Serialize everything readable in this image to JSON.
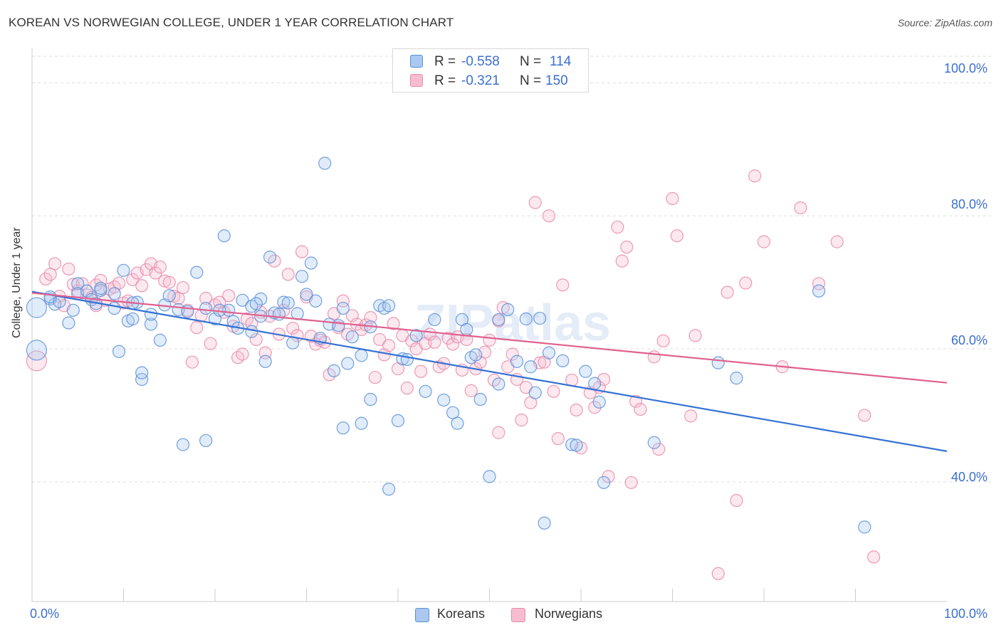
{
  "title": "KOREAN VS NORWEGIAN COLLEGE, UNDER 1 YEAR CORRELATION CHART",
  "source": "Source: ZipAtlas.com",
  "watermark": "ZIPatlas",
  "legend": {
    "rows": [
      {
        "r_label": "R =",
        "r_value": "-0.558",
        "n_label": "N =",
        "n_value": "114"
      },
      {
        "r_label": "R =",
        "r_value": "-0.321",
        "n_label": "N =",
        "n_value": "150"
      }
    ]
  },
  "bottom_legend": [
    "Koreans",
    "Norwegians"
  ],
  "colors": {
    "korean_fill": "#aac8f0",
    "korean_stroke": "#5b8fd6",
    "korean_line": "#3471d4",
    "norwegian_fill": "#f7bcd0",
    "norwegian_stroke": "#e88aaa",
    "norwegian_line": "#e0608e",
    "axis_text": "#3a6fd0",
    "grid": "#dddddd"
  },
  "chart_data": {
    "type": "scatter",
    "title": "KOREAN VS NORWEGIAN COLLEGE, UNDER 1 YEAR CORRELATION CHART",
    "xlabel": "",
    "ylabel": "College, Under 1 year",
    "xlim": [
      0,
      100
    ],
    "ylim": [
      22,
      104
    ],
    "x_tick_labels": [
      "0.0%",
      "100.0%"
    ],
    "y_tick_labels": [
      "40.0%",
      "60.0%",
      "80.0%",
      "100.0%"
    ],
    "y_ticks": [
      40,
      60,
      80,
      100
    ],
    "grid": true,
    "legend_position": "top-center",
    "series": [
      {
        "name": "Koreans",
        "R": -0.558,
        "N": 114,
        "trend": {
          "x": [
            0,
            100
          ],
          "y": [
            68.6,
            44.6
          ]
        },
        "points": [
          [
            0.5,
            66.2
          ],
          [
            0.5,
            59.8
          ],
          [
            2,
            67.5
          ],
          [
            2.5,
            66.7
          ],
          [
            4,
            63.9
          ],
          [
            4.5,
            65.8
          ],
          [
            5,
            69.8
          ],
          [
            5,
            68.3
          ],
          [
            6,
            68.7
          ],
          [
            6.5,
            67.4
          ],
          [
            7,
            66.8
          ],
          [
            7.5,
            68.8
          ],
          [
            9,
            66.1
          ],
          [
            9,
            68.3
          ],
          [
            9.5,
            59.6
          ],
          [
            10,
            71.8
          ],
          [
            10.5,
            64.2
          ],
          [
            11,
            64.5
          ],
          [
            11.5,
            67
          ],
          [
            12,
            55.4
          ],
          [
            12,
            56.4
          ],
          [
            13,
            63.7
          ],
          [
            13,
            65.2
          ],
          [
            14,
            61.3
          ],
          [
            14.5,
            66.6
          ],
          [
            15,
            68
          ],
          [
            16,
            65.9
          ],
          [
            16.5,
            45.6
          ],
          [
            17,
            65.6
          ],
          [
            18,
            71.5
          ],
          [
            19,
            66.1
          ],
          [
            19,
            46.2
          ],
          [
            20,
            64.5
          ],
          [
            21,
            77
          ],
          [
            21.5,
            65.8
          ],
          [
            22,
            64.1
          ],
          [
            22.5,
            63.1
          ],
          [
            23,
            67.3
          ],
          [
            24,
            66.4
          ],
          [
            24,
            62.6
          ],
          [
            25,
            67.5
          ],
          [
            25,
            64.9
          ],
          [
            25.5,
            58.1
          ],
          [
            26,
            73.8
          ],
          [
            26.5,
            65.4
          ],
          [
            27,
            65.2
          ],
          [
            27.5,
            67
          ],
          [
            28,
            66.9
          ],
          [
            28.5,
            60.9
          ],
          [
            29,
            65.3
          ],
          [
            29.5,
            70.9
          ],
          [
            30,
            68.2
          ],
          [
            30.5,
            72.9
          ],
          [
            31,
            67.2
          ],
          [
            31.5,
            61.6
          ],
          [
            32,
            87.9
          ],
          [
            32.5,
            63.7
          ],
          [
            33,
            56.7
          ],
          [
            33.5,
            63.5
          ],
          [
            34,
            48.1
          ],
          [
            34.5,
            57.8
          ],
          [
            35,
            61.8
          ],
          [
            36,
            48.8
          ],
          [
            36,
            59
          ],
          [
            37,
            52.4
          ],
          [
            37,
            63.3
          ],
          [
            38,
            66.5
          ],
          [
            38.5,
            66.1
          ],
          [
            39,
            38.9
          ],
          [
            39,
            66.5
          ],
          [
            40,
            49.2
          ],
          [
            40.5,
            58.5
          ],
          [
            42,
            62
          ],
          [
            43,
            53.6
          ],
          [
            44,
            64.4
          ],
          [
            45,
            52.3
          ],
          [
            46,
            50.4
          ],
          [
            46.5,
            48.8
          ],
          [
            47,
            64.4
          ],
          [
            47.5,
            62.9
          ],
          [
            48,
            58.7
          ],
          [
            49,
            52.4
          ],
          [
            50,
            40.8
          ],
          [
            51,
            64.4
          ],
          [
            51,
            54.7
          ],
          [
            52,
            65.9
          ],
          [
            53,
            58.1
          ],
          [
            54,
            64.5
          ],
          [
            54.5,
            57.3
          ],
          [
            55,
            53.4
          ],
          [
            56,
            33.8
          ],
          [
            56.5,
            59.4
          ],
          [
            58,
            58.2
          ],
          [
            59,
            45.6
          ],
          [
            59.5,
            45.5
          ],
          [
            60.5,
            56.6
          ],
          [
            61.5,
            54.8
          ],
          [
            62,
            52
          ],
          [
            62.5,
            39.9
          ],
          [
            68,
            45.9
          ],
          [
            75,
            57.9
          ],
          [
            77,
            55.6
          ],
          [
            86,
            68.7
          ],
          [
            91,
            33.2
          ],
          [
            2,
            67.8
          ],
          [
            3,
            67.1
          ],
          [
            7.5,
            69.1
          ],
          [
            11,
            66.9
          ],
          [
            20.5,
            65.8
          ],
          [
            24.5,
            66.8
          ],
          [
            34,
            66.1
          ],
          [
            41,
            58.4
          ],
          [
            48.5,
            59.1
          ],
          [
            55.5,
            64.6
          ]
        ]
      },
      {
        "name": "Norwegians",
        "R": -0.321,
        "N": 150,
        "trend": {
          "x": [
            0,
            100
          ],
          "y": [
            68.4,
            54.9
          ]
        },
        "points": [
          [
            0.5,
            58.2
          ],
          [
            1.5,
            70.5
          ],
          [
            2,
            71.2
          ],
          [
            2.5,
            72.8
          ],
          [
            3,
            67.9
          ],
          [
            3.5,
            66.5
          ],
          [
            4,
            72
          ],
          [
            4.5,
            69.7
          ],
          [
            5,
            68.7
          ],
          [
            5.5,
            69.8
          ],
          [
            6,
            68.1
          ],
          [
            6.5,
            67.7
          ],
          [
            7,
            66.5
          ],
          [
            7,
            69.6
          ],
          [
            7.5,
            70.3
          ],
          [
            8,
            67.3
          ],
          [
            8.5,
            69
          ],
          [
            9,
            69.3
          ],
          [
            9.5,
            69.9
          ],
          [
            10,
            66.9
          ],
          [
            10.5,
            67.2
          ],
          [
            11,
            70.4
          ],
          [
            11.5,
            71.4
          ],
          [
            12,
            69.5
          ],
          [
            12.5,
            71.9
          ],
          [
            13,
            72.8
          ],
          [
            13.5,
            71.4
          ],
          [
            14,
            72.3
          ],
          [
            14.5,
            70.2
          ],
          [
            15,
            70
          ],
          [
            15.5,
            67.9
          ],
          [
            16,
            67.6
          ],
          [
            16.5,
            69.2
          ],
          [
            17,
            65.8
          ],
          [
            17.5,
            58
          ],
          [
            18,
            63.2
          ],
          [
            18.5,
            65
          ],
          [
            19,
            67.6
          ],
          [
            19.5,
            60.8
          ],
          [
            20,
            66.6
          ],
          [
            20.5,
            67
          ],
          [
            21,
            65.5
          ],
          [
            21.5,
            68
          ],
          [
            22,
            63.4
          ],
          [
            22.5,
            58.7
          ],
          [
            23,
            59.2
          ],
          [
            23.5,
            64.5
          ],
          [
            24,
            63.8
          ],
          [
            24.5,
            61.4
          ],
          [
            25,
            65.5
          ],
          [
            25.5,
            59.4
          ],
          [
            26,
            64.9
          ],
          [
            26.5,
            73.2
          ],
          [
            27,
            62.2
          ],
          [
            27.5,
            65.8
          ],
          [
            28,
            71.2
          ],
          [
            28.5,
            63.1
          ],
          [
            29,
            62
          ],
          [
            29.5,
            74.6
          ],
          [
            30,
            67.8
          ],
          [
            30.5,
            61.9
          ],
          [
            31,
            60.7
          ],
          [
            31.5,
            61.3
          ],
          [
            32,
            61
          ],
          [
            32.5,
            56.1
          ],
          [
            33,
            65.3
          ],
          [
            33.5,
            63.2
          ],
          [
            34,
            67.2
          ],
          [
            34.5,
            62.2
          ],
          [
            35,
            65
          ],
          [
            35.5,
            63.7
          ],
          [
            36,
            62.9
          ],
          [
            36.5,
            63.6
          ],
          [
            37,
            64.7
          ],
          [
            37.5,
            55.7
          ],
          [
            38,
            61.4
          ],
          [
            38.5,
            59.1
          ],
          [
            39,
            60.5
          ],
          [
            39.5,
            63.8
          ],
          [
            40,
            57
          ],
          [
            40.5,
            62
          ],
          [
            41,
            54.1
          ],
          [
            41.5,
            61.2
          ],
          [
            42,
            60
          ],
          [
            42.5,
            56.6
          ],
          [
            43,
            60.8
          ],
          [
            43.5,
            62.2
          ],
          [
            44,
            61
          ],
          [
            44.5,
            57.3
          ],
          [
            45,
            57.8
          ],
          [
            45.5,
            61.6
          ],
          [
            46,
            60.7
          ],
          [
            46.5,
            61.8
          ],
          [
            47,
            56.8
          ],
          [
            47.5,
            61.4
          ],
          [
            48,
            53.7
          ],
          [
            48.5,
            57
          ],
          [
            49,
            58
          ],
          [
            49.5,
            59.5
          ],
          [
            50,
            61.3
          ],
          [
            50.5,
            55.3
          ],
          [
            51,
            64.2
          ],
          [
            51.5,
            66.2
          ],
          [
            52,
            57.3
          ],
          [
            52.5,
            59.2
          ],
          [
            53,
            55.4
          ],
          [
            53.5,
            49.3
          ],
          [
            54,
            54.2
          ],
          [
            54.5,
            51.9
          ],
          [
            55,
            82
          ],
          [
            55.5,
            57.9
          ],
          [
            56,
            58
          ],
          [
            56.5,
            80
          ],
          [
            57,
            53.6
          ],
          [
            57.5,
            46.5
          ],
          [
            58,
            69.6
          ],
          [
            59,
            55.3
          ],
          [
            59.5,
            50.8
          ],
          [
            60,
            45.1
          ],
          [
            61,
            53.4
          ],
          [
            61.5,
            51.2
          ],
          [
            62,
            54.2
          ],
          [
            62.5,
            55.4
          ],
          [
            63,
            40.8
          ],
          [
            64,
            78.3
          ],
          [
            64.5,
            73.2
          ],
          [
            65,
            75.3
          ],
          [
            65.5,
            39.9
          ],
          [
            66,
            52.1
          ],
          [
            66.5,
            50.9
          ],
          [
            68,
            58.8
          ],
          [
            68.5,
            44.9
          ],
          [
            69,
            61.2
          ],
          [
            70,
            82.6
          ],
          [
            70.5,
            77
          ],
          [
            72,
            49.9
          ],
          [
            72.5,
            62
          ],
          [
            75,
            26.2
          ],
          [
            76,
            68.5
          ],
          [
            77,
            37.2
          ],
          [
            78,
            69.9
          ],
          [
            79,
            86
          ],
          [
            80,
            76.1
          ],
          [
            82,
            57.3
          ],
          [
            84,
            81.2
          ],
          [
            86,
            69.8
          ],
          [
            88,
            76.1
          ],
          [
            91,
            50
          ],
          [
            92,
            28.7
          ],
          [
            51,
            47.4
          ]
        ]
      }
    ]
  }
}
